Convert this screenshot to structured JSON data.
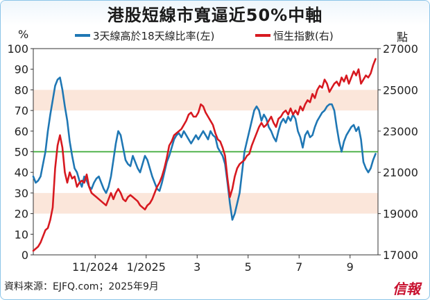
{
  "chart_data": {
    "type": "line",
    "title": "港股短線市寬逼近50%中軸",
    "y_left": {
      "unit": "%",
      "min": 0,
      "max": 100,
      "ticks": [
        0,
        10,
        20,
        30,
        40,
        50,
        60,
        70,
        80,
        90,
        100
      ]
    },
    "y_right": {
      "unit": "點",
      "min": 17000,
      "max": 27000,
      "ticks": [
        17000,
        19000,
        21000,
        23000,
        25000,
        27000
      ]
    },
    "x_ticks": [
      "11/2024",
      "1/2025",
      "3",
      "5",
      "7",
      "9"
    ],
    "x_tick_index": [
      51,
      93,
      135,
      177,
      219,
      261
    ],
    "bands": [
      {
        "from": 20,
        "to": 30
      },
      {
        "from": 70,
        "to": 80
      }
    ],
    "reference_line": {
      "value": 50,
      "color": "#3aa935"
    },
    "series": [
      {
        "name": "3天線高於18天線比率(左)",
        "axis": "left",
        "color": "#1f77b4",
        "points": [
          [
            0,
            38
          ],
          [
            2,
            35
          ],
          [
            4,
            36
          ],
          [
            6,
            38
          ],
          [
            8,
            44
          ],
          [
            10,
            50
          ],
          [
            12,
            60
          ],
          [
            14,
            68
          ],
          [
            16,
            75
          ],
          [
            18,
            82
          ],
          [
            20,
            85
          ],
          [
            22,
            86
          ],
          [
            24,
            80
          ],
          [
            26,
            72
          ],
          [
            28,
            65
          ],
          [
            30,
            55
          ],
          [
            32,
            48
          ],
          [
            34,
            42
          ],
          [
            36,
            40
          ],
          [
            38,
            36
          ],
          [
            40,
            33
          ],
          [
            42,
            38
          ],
          [
            44,
            36
          ],
          [
            46,
            33
          ],
          [
            48,
            32
          ],
          [
            50,
            35
          ],
          [
            52,
            37
          ],
          [
            54,
            38
          ],
          [
            56,
            35
          ],
          [
            58,
            32
          ],
          [
            60,
            30
          ],
          [
            62,
            33
          ],
          [
            64,
            38
          ],
          [
            66,
            46
          ],
          [
            68,
            54
          ],
          [
            70,
            60
          ],
          [
            72,
            58
          ],
          [
            74,
            52
          ],
          [
            76,
            46
          ],
          [
            78,
            44
          ],
          [
            80,
            43
          ],
          [
            82,
            48
          ],
          [
            84,
            45
          ],
          [
            86,
            42
          ],
          [
            88,
            40
          ],
          [
            90,
            44
          ],
          [
            92,
            48
          ],
          [
            94,
            46
          ],
          [
            96,
            42
          ],
          [
            98,
            38
          ],
          [
            100,
            35
          ],
          [
            102,
            32
          ],
          [
            104,
            31
          ],
          [
            106,
            35
          ],
          [
            108,
            40
          ],
          [
            110,
            45
          ],
          [
            112,
            48
          ],
          [
            114,
            52
          ],
          [
            116,
            56
          ],
          [
            118,
            58
          ],
          [
            120,
            59
          ],
          [
            122,
            57
          ],
          [
            124,
            60
          ],
          [
            126,
            58
          ],
          [
            128,
            56
          ],
          [
            130,
            54
          ],
          [
            132,
            56
          ],
          [
            134,
            58
          ],
          [
            136,
            56
          ],
          [
            138,
            58
          ],
          [
            140,
            60
          ],
          [
            142,
            58
          ],
          [
            144,
            56
          ],
          [
            146,
            60
          ],
          [
            148,
            58
          ],
          [
            150,
            57
          ],
          [
            152,
            52
          ],
          [
            154,
            50
          ],
          [
            156,
            48
          ],
          [
            158,
            44
          ],
          [
            160,
            35
          ],
          [
            162,
            25
          ],
          [
            164,
            17
          ],
          [
            166,
            20
          ],
          [
            168,
            25
          ],
          [
            170,
            30
          ],
          [
            172,
            40
          ],
          [
            174,
            50
          ],
          [
            176,
            55
          ],
          [
            178,
            60
          ],
          [
            180,
            65
          ],
          [
            182,
            70
          ],
          [
            184,
            72
          ],
          [
            186,
            70
          ],
          [
            188,
            65
          ],
          [
            190,
            68
          ],
          [
            192,
            66
          ],
          [
            194,
            62
          ],
          [
            196,
            60
          ],
          [
            198,
            57
          ],
          [
            200,
            55
          ],
          [
            202,
            60
          ],
          [
            204,
            64
          ],
          [
            206,
            66
          ],
          [
            208,
            64
          ],
          [
            210,
            67
          ],
          [
            212,
            65
          ],
          [
            214,
            68
          ],
          [
            216,
            66
          ],
          [
            218,
            60
          ],
          [
            220,
            57
          ],
          [
            222,
            52
          ],
          [
            224,
            58
          ],
          [
            226,
            60
          ],
          [
            228,
            57
          ],
          [
            230,
            58
          ],
          [
            232,
            62
          ],
          [
            234,
            65
          ],
          [
            236,
            67
          ],
          [
            238,
            69
          ],
          [
            240,
            70
          ],
          [
            242,
            72
          ],
          [
            244,
            73
          ],
          [
            246,
            73
          ],
          [
            248,
            70
          ],
          [
            250,
            62
          ],
          [
            252,
            55
          ],
          [
            254,
            50
          ],
          [
            256,
            55
          ],
          [
            258,
            58
          ],
          [
            260,
            60
          ],
          [
            262,
            62
          ],
          [
            264,
            63
          ],
          [
            266,
            60
          ],
          [
            268,
            62
          ],
          [
            270,
            56
          ],
          [
            272,
            45
          ],
          [
            274,
            42
          ],
          [
            276,
            40
          ],
          [
            278,
            42
          ],
          [
            280,
            46
          ],
          [
            282,
            49
          ]
        ]
      },
      {
        "name": "恒生指數(右)",
        "axis": "right",
        "color": "#d71920",
        "points": [
          [
            0,
            17200
          ],
          [
            2,
            17300
          ],
          [
            4,
            17400
          ],
          [
            6,
            17600
          ],
          [
            8,
            17900
          ],
          [
            10,
            18200
          ],
          [
            12,
            18300
          ],
          [
            14,
            18700
          ],
          [
            16,
            19300
          ],
          [
            18,
            21200
          ],
          [
            20,
            22300
          ],
          [
            22,
            22800
          ],
          [
            24,
            22200
          ],
          [
            26,
            21000
          ],
          [
            28,
            20500
          ],
          [
            30,
            21000
          ],
          [
            32,
            20700
          ],
          [
            34,
            20800
          ],
          [
            36,
            20300
          ],
          [
            38,
            20500
          ],
          [
            40,
            20600
          ],
          [
            42,
            20500
          ],
          [
            44,
            20900
          ],
          [
            46,
            20300
          ],
          [
            48,
            20000
          ],
          [
            50,
            19900
          ],
          [
            52,
            19800
          ],
          [
            54,
            19700
          ],
          [
            56,
            19600
          ],
          [
            58,
            19500
          ],
          [
            60,
            19400
          ],
          [
            62,
            19700
          ],
          [
            64,
            20000
          ],
          [
            66,
            19700
          ],
          [
            68,
            20000
          ],
          [
            70,
            20200
          ],
          [
            72,
            20000
          ],
          [
            74,
            19700
          ],
          [
            76,
            19600
          ],
          [
            78,
            19800
          ],
          [
            80,
            19900
          ],
          [
            82,
            19800
          ],
          [
            84,
            19700
          ],
          [
            86,
            19600
          ],
          [
            88,
            19400
          ],
          [
            90,
            19300
          ],
          [
            92,
            19200
          ],
          [
            94,
            19400
          ],
          [
            96,
            19500
          ],
          [
            98,
            19700
          ],
          [
            100,
            20000
          ],
          [
            102,
            20300
          ],
          [
            104,
            20500
          ],
          [
            106,
            20800
          ],
          [
            108,
            21200
          ],
          [
            110,
            21700
          ],
          [
            112,
            22300
          ],
          [
            114,
            22500
          ],
          [
            116,
            22800
          ],
          [
            118,
            22900
          ],
          [
            120,
            23000
          ],
          [
            122,
            23100
          ],
          [
            124,
            23300
          ],
          [
            126,
            23500
          ],
          [
            128,
            23800
          ],
          [
            130,
            23900
          ],
          [
            132,
            23700
          ],
          [
            134,
            23700
          ],
          [
            136,
            23900
          ],
          [
            138,
            24300
          ],
          [
            140,
            24200
          ],
          [
            142,
            23900
          ],
          [
            144,
            23700
          ],
          [
            146,
            23500
          ],
          [
            148,
            23300
          ],
          [
            150,
            22900
          ],
          [
            152,
            22600
          ],
          [
            154,
            22500
          ],
          [
            156,
            22200
          ],
          [
            158,
            21800
          ],
          [
            160,
            20700
          ],
          [
            162,
            19800
          ],
          [
            164,
            20200
          ],
          [
            166,
            20800
          ],
          [
            168,
            21200
          ],
          [
            170,
            21400
          ],
          [
            172,
            21500
          ],
          [
            174,
            21600
          ],
          [
            176,
            21800
          ],
          [
            178,
            21900
          ],
          [
            180,
            22300
          ],
          [
            182,
            22600
          ],
          [
            184,
            22900
          ],
          [
            186,
            23200
          ],
          [
            188,
            23400
          ],
          [
            190,
            23200
          ],
          [
            192,
            23300
          ],
          [
            194,
            23500
          ],
          [
            196,
            23700
          ],
          [
            198,
            23400
          ],
          [
            200,
            23200
          ],
          [
            202,
            23600
          ],
          [
            204,
            23700
          ],
          [
            206,
            23900
          ],
          [
            208,
            24000
          ],
          [
            210,
            23800
          ],
          [
            212,
            24100
          ],
          [
            214,
            23800
          ],
          [
            216,
            24000
          ],
          [
            218,
            23800
          ],
          [
            220,
            24200
          ],
          [
            222,
            24000
          ],
          [
            224,
            24300
          ],
          [
            226,
            24500
          ],
          [
            228,
            24400
          ],
          [
            230,
            24800
          ],
          [
            232,
            24600
          ],
          [
            234,
            25000
          ],
          [
            236,
            25200
          ],
          [
            238,
            25100
          ],
          [
            240,
            25500
          ],
          [
            242,
            25300
          ],
          [
            244,
            24900
          ],
          [
            246,
            25100
          ],
          [
            248,
            25300
          ],
          [
            250,
            25400
          ],
          [
            252,
            25200
          ],
          [
            254,
            25600
          ],
          [
            256,
            25400
          ],
          [
            258,
            25700
          ],
          [
            260,
            25300
          ],
          [
            262,
            25600
          ],
          [
            264,
            25900
          ],
          [
            266,
            25700
          ],
          [
            268,
            26000
          ],
          [
            270,
            25300
          ],
          [
            272,
            25500
          ],
          [
            274,
            25700
          ],
          [
            276,
            25600
          ],
          [
            278,
            25800
          ],
          [
            280,
            26200
          ],
          [
            282,
            26500
          ]
        ]
      }
    ]
  },
  "header": {
    "title": "港股短線市寬逼近50%中軸",
    "unit_left": "%",
    "unit_right": "點"
  },
  "legend": {
    "items": [
      {
        "label": "3天線高於18天線比率(左)",
        "color": "#1f77b4"
      },
      {
        "label": "恒生指數(右)",
        "color": "#d71920"
      }
    ]
  },
  "footer": {
    "source": "資料來源：EJFQ.com；2025年9月",
    "brand": "信報"
  }
}
